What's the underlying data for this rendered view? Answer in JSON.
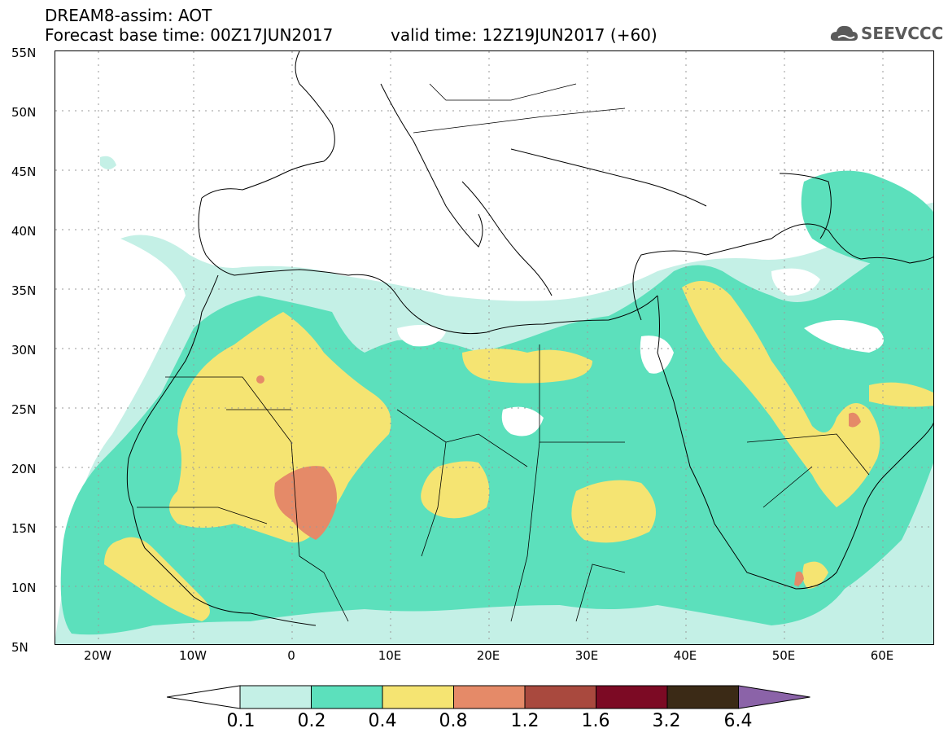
{
  "header": {
    "line1": "DREAM8-assim: AOT",
    "line2a": "Forecast base time: 00Z17JUN2017",
    "line2b": "valid time: 12Z19JUN2017 (+60)",
    "logo_text": "SEEVCCC"
  },
  "axes": {
    "y_labels": [
      "55N",
      "50N",
      "45N",
      "40N",
      "35N",
      "30N",
      "25N",
      "20N",
      "15N",
      "10N",
      "5N"
    ],
    "x_labels": [
      "20W",
      "10W",
      "0",
      "10E",
      "20E",
      "30E",
      "40E",
      "50E",
      "60E"
    ]
  },
  "colorbar": {
    "levels": [
      "0.1",
      "0.2",
      "0.4",
      "0.8",
      "1.2",
      "1.6",
      "3.2",
      "6.4"
    ],
    "colors": [
      "#ffffff",
      "#c4f0e6",
      "#5ce0bc",
      "#f5e472",
      "#e58a68",
      "#a9493e",
      "#7c0a24",
      "#3b2a16",
      "#8b63a8"
    ]
  }
}
